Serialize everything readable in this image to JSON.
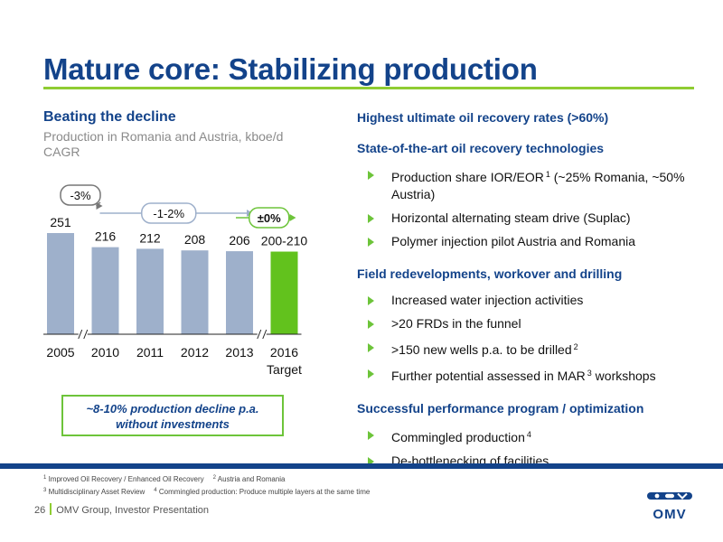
{
  "header": {
    "title": "Mature core: Stabilizing production"
  },
  "left": {
    "heading": "Beating the decline",
    "subtitle": "Production in Romania and Austria, kboe/d",
    "subtitle2": "CAGR",
    "callout_line1": "~8-10% production decline p.a.",
    "callout_line2": "without investments"
  },
  "colors": {
    "bar": "#9eb0cb",
    "bar_target": "#62c21d",
    "accent": "#6dc43a",
    "brand": "#13438a"
  },
  "chart_data": {
    "type": "bar",
    "categories": [
      "2005",
      "2010",
      "2011",
      "2012",
      "2013",
      "2016"
    ],
    "category_sublabels": [
      "",
      "",
      "",
      "",
      "",
      "Target"
    ],
    "values": [
      251,
      216,
      212,
      208,
      206,
      205
    ],
    "value_labels": [
      "251",
      "216",
      "212",
      "208",
      "206",
      "200-210"
    ],
    "highlight_index": 5,
    "axis_breaks_after": [
      "2005",
      "2013"
    ],
    "annotations": [
      {
        "label": "-3%",
        "from": "2005",
        "to": "2010"
      },
      {
        "label": "-1-2%",
        "from": "2010",
        "to": "2013"
      },
      {
        "label": "±0%",
        "from": "2013",
        "to": "2016"
      }
    ],
    "ylim": [
      0,
      260
    ],
    "grid": false,
    "legend": "none"
  },
  "right": {
    "sections": [
      {
        "heading": "Highest ultimate oil recovery rates (>60%)",
        "items": []
      },
      {
        "heading": "State-of-the-art oil recovery technologies",
        "items": [
          {
            "text": "Production share IOR/EOR",
            "sup": "1",
            "text2": " (~25% Romania, ~50% Austria)"
          },
          {
            "text": "Horizontal alternating steam drive (Suplac)",
            "sup": "",
            "text2": ""
          },
          {
            "text": "Polymer injection pilot Austria and Romania",
            "sup": "",
            "text2": ""
          }
        ]
      },
      {
        "heading": "Field redevelopments, workover and drilling",
        "items": [
          {
            "text": "Increased water injection activities",
            "sup": "",
            "text2": ""
          },
          {
            "text": ">20 FRDs in the funnel",
            "sup": "",
            "text2": ""
          },
          {
            "text": ">150 new wells p.a. to be drilled",
            "sup": "2",
            "text2": ""
          },
          {
            "text": "Further potential assessed in MAR",
            "sup": "3",
            "text2": " workshops"
          }
        ]
      },
      {
        "heading": "Successful performance program / optimization",
        "items": [
          {
            "text": "Commingled production",
            "sup": "4",
            "text2": ""
          },
          {
            "text": "De-bottlenecking of facilities",
            "sup": "",
            "text2": ""
          }
        ]
      }
    ]
  },
  "footnotes": {
    "n1": "1",
    "t1": "Improved Oil Recovery / Enhanced Oil Recovery",
    "n2": "2",
    "t2": "Austria and Romania",
    "n3": "3",
    "t3": "Multidisciplinary Asset Review",
    "n4": "4",
    "t4": "Commingled production: Produce multiple layers at the same time"
  },
  "footer": {
    "page": "26",
    "text": "OMV Group, Investor Presentation",
    "logo": "OMV"
  }
}
